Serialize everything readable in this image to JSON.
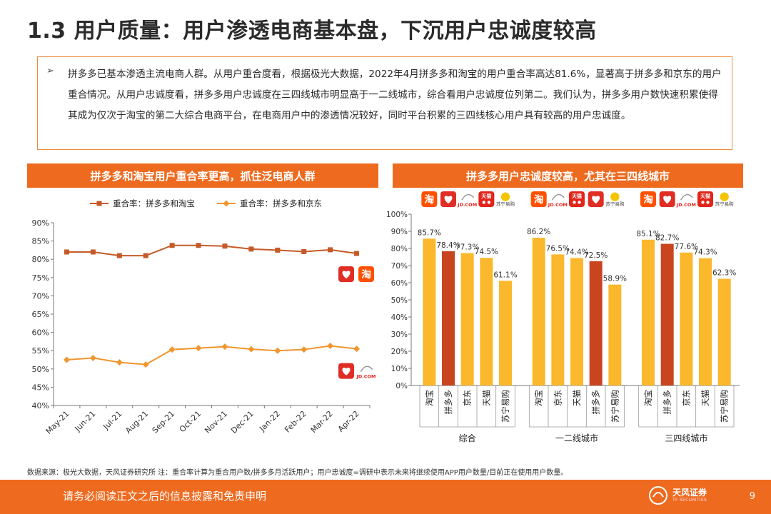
{
  "page": {
    "title": "1.3 用户质量：用户渗透电商基本盘，下沉用户忠诚度较高",
    "summary": "拼多多已基本渗透主流电商人群。从用户重合度看，根据极光大数据，2022年4月拼多多和淘宝的用户重合率高达81.6%，显著高于拼多多和京东的用户重合情况。从用户忠诚度看，拼多多用户忠诚度在三四线城市明显高于一二线城市，综合看用户忠诚度位列第二。我们认为，拼多多用户数快速积累使得其成为仅次于淘宝的第二大综合电商平台，在电商用户中的渗透情况较好，同时平台积累的三四线核心用户具有较高的用户忠诚度。",
    "bullet_symbol": "➢",
    "footnote": "数据来源：极光大数据，天风证券研究所   注：重合率计算为重合用户数/拼多多月活跃用户；用户忠诚度=调研中表示未来将继续使用APP用户数量/目前正在使用用户数量。",
    "footer_disclaimer": "请务必阅读正文之后的信息披露和免责申明",
    "page_number": "9",
    "brand_name": "天风证券",
    "brand_sub": "TF SECURITIES"
  },
  "colors": {
    "accent": "#ee6a1f",
    "series_taobao": "#c55a28",
    "series_jd": "#f0962e",
    "bar_yellow": "#fbb82c",
    "bar_highlight": "#c8451f",
    "logo_taobao": "#ff5000",
    "logo_pdd": "#e02e24",
    "logo_tmall": "#e1251b"
  },
  "chart_data": [
    {
      "type": "line",
      "title": "拼多多和淘宝用户重合率更高，抓住泛电商人群",
      "categories": [
        "May-21",
        "Jun-21",
        "Jul-21",
        "Aug-21",
        "Sep-21",
        "Oct-21",
        "Nov-21",
        "Dec-21",
        "Jan-22",
        "Feb-22",
        "Mar-22",
        "Apr-22"
      ],
      "series": [
        {
          "name": "重合率：拼多多和淘宝",
          "marker": "square",
          "values": [
            82.0,
            82.0,
            81.0,
            81.0,
            83.8,
            83.8,
            83.6,
            82.8,
            82.5,
            82.1,
            82.6,
            81.6
          ]
        },
        {
          "name": "重合率：拼多多和京东",
          "marker": "diamond",
          "values": [
            52.5,
            53.0,
            51.8,
            51.2,
            55.3,
            55.7,
            56.1,
            55.4,
            55.0,
            55.3,
            56.3,
            55.5
          ]
        }
      ],
      "yticks": [
        "40%",
        "45%",
        "50%",
        "55%",
        "60%",
        "65%",
        "70%",
        "75%",
        "80%",
        "85%",
        "90%"
      ],
      "ylim": [
        40,
        90
      ],
      "legend_position": "top",
      "logos": [
        {
          "near_series": "重合率：拼多多和淘宝",
          "icons": [
            "pdd-icon",
            "taobao-icon"
          ],
          "labels": [
            "",
            "淘"
          ]
        },
        {
          "near_series": "重合率：拼多多和京东",
          "icons": [
            "pdd-icon",
            "jd-icon"
          ],
          "labels": [
            "",
            "JD.COM"
          ]
        }
      ]
    },
    {
      "type": "bar",
      "title": "拼多多用户忠诚度较高，尤其在三四线城市",
      "ylim": [
        0,
        100
      ],
      "yticks": [
        "0%",
        "10%",
        "20%",
        "30%",
        "40%",
        "50%",
        "60%",
        "70%",
        "80%",
        "90%",
        "100%"
      ],
      "groups": [
        {
          "name": "综合",
          "categories": [
            "淘宝",
            "拼多多",
            "京东",
            "天猫",
            "苏宁易购"
          ],
          "values": [
            85.7,
            78.4,
            77.3,
            74.5,
            61.1
          ],
          "labels": [
            "85.7%",
            "78.4%",
            "77.3%",
            "74.5%",
            "61.1%"
          ],
          "highlight_index": 1,
          "logos": [
            {
              "icon": "taobao-icon",
              "text": "淘"
            },
            {
              "icon": "pdd-icon",
              "text": ""
            },
            {
              "icon": "jd-icon",
              "text": "JD.COM"
            },
            {
              "icon": "tmall-icon",
              "text": "天猫"
            },
            {
              "icon": "suning-icon",
              "text": "苏宁易购"
            }
          ]
        },
        {
          "name": "一二线城市",
          "categories": [
            "淘宝",
            "京东",
            "天猫",
            "拼多多",
            "苏宁易购"
          ],
          "values": [
            86.2,
            76.5,
            74.4,
            72.5,
            58.9
          ],
          "labels": [
            "86.2%",
            "76.5%",
            "74.4%",
            "72.5%",
            "58.9%"
          ],
          "highlight_index": 3,
          "logos": [
            {
              "icon": "taobao-icon",
              "text": "淘"
            },
            {
              "icon": "jd-icon",
              "text": "JD.COM"
            },
            {
              "icon": "tmall-icon",
              "text": "天猫"
            },
            {
              "icon": "pdd-icon",
              "text": ""
            },
            {
              "icon": "suning-icon",
              "text": "苏宁易购"
            }
          ]
        },
        {
          "name": "三四线城市",
          "categories": [
            "淘宝",
            "拼多多",
            "京东",
            "天猫",
            "苏宁易购"
          ],
          "values": [
            85.1,
            82.7,
            77.6,
            74.3,
            62.3
          ],
          "labels": [
            "85.1%",
            "82.7%",
            "77.6%",
            "74.3%",
            "62.3%"
          ],
          "highlight_index": 1,
          "logos": [
            {
              "icon": "taobao-icon",
              "text": "淘"
            },
            {
              "icon": "pdd-icon",
              "text": ""
            },
            {
              "icon": "jd-icon",
              "text": "JD.COM"
            },
            {
              "icon": "tmall-icon",
              "text": "天猫"
            },
            {
              "icon": "suning-icon",
              "text": "苏宁易购"
            }
          ]
        }
      ]
    }
  ]
}
